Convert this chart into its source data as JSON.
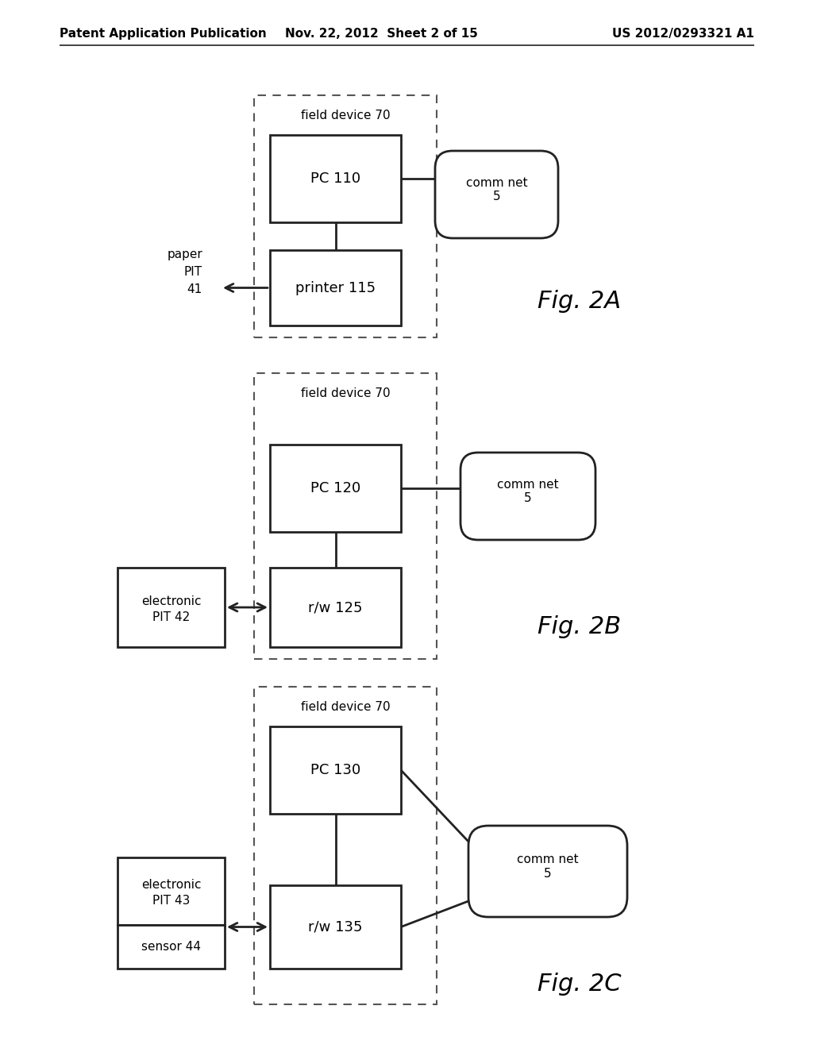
{
  "bg_color": "#ffffff",
  "header_left": "Patent Application Publication",
  "header_mid": "Nov. 22, 2012  Sheet 2 of 15",
  "header_right": "US 2012/0293321 A1",
  "fig2a": {
    "label": "Fig. 2A",
    "field_device_label": "field device 70",
    "pc_label": "PC 110",
    "bottom_label": "printer 115",
    "comm_label": "comm net\n5",
    "pit_label": "paper\nPIT\n41"
  },
  "fig2b": {
    "label": "Fig. 2B",
    "field_device_label": "field device 70",
    "pc_label": "PC 120",
    "bottom_label": "r/w 125",
    "comm_label": "comm net\n5",
    "pit_label": "electronic\nPIT 42"
  },
  "fig2c": {
    "label": "Fig. 2C",
    "field_device_label": "field device 70",
    "pc_label": "PC 130",
    "bottom_label": "r/w 135",
    "comm_label": "comm net\n5",
    "pit_label": "electronic\nPIT 43",
    "sensor_label": "sensor 44"
  },
  "line_color": "#222222",
  "box_color": "#222222",
  "dash_color": "#555555"
}
